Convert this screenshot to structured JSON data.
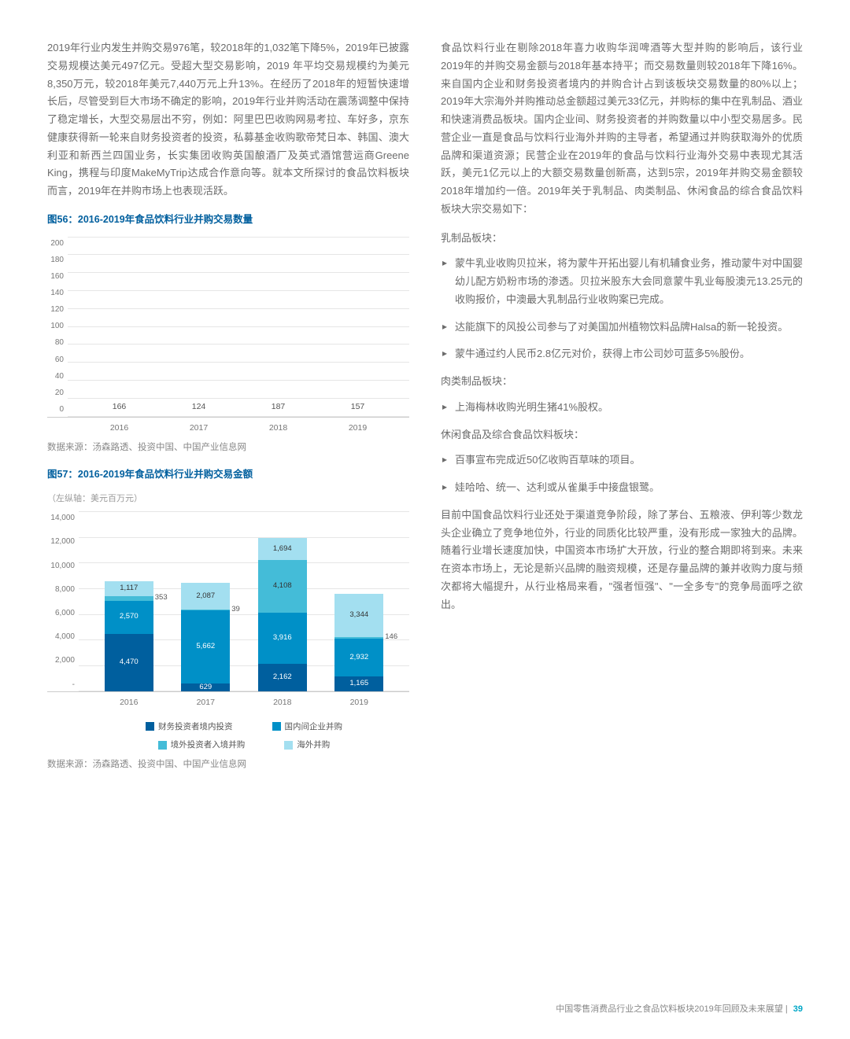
{
  "leftCol": {
    "para1": "2019年行业内发生并购交易976笔，较2018年的1,032笔下降5%，2019年已披露交易规模达美元497亿元。受超大型交易影响，2019 年平均交易规模约为美元8,350万元，较2018年美元7,440万元上升13%。在经历了2018年的短暂快速增长后，尽管受到巨大市场不确定的影响，2019年行业并购活动在震荡调整中保持了稳定增长，大型交易层出不穷，例如：阿里巴巴收购网易考拉、车好多，京东健康获得新一轮来自财务投资者的投资，私募基金收购歌帝梵日本、韩国、澳大利亚和新西兰四国业务，长实集团收购英国酿酒厂及英式酒馆营运商Greene King，携程与印度MakeMyTrip达成合作意向等。就本文所探讨的食品饮料板块而言，2019年在并购市场上也表现活跃。"
  },
  "chart56": {
    "title": "图56：2016-2019年食品饮料行业并购交易数量",
    "type": "bar",
    "categories": [
      "2016",
      "2017",
      "2018",
      "2019"
    ],
    "values": [
      166,
      124,
      187,
      157
    ],
    "ylim": [
      0,
      200
    ],
    "ytick_step": 20,
    "bar_color": "#7fcde3",
    "grid_color": "#e6e6e6",
    "source": "数据来源：汤森路透、投资中国、中国产业信息网"
  },
  "chart57": {
    "title": "图57：2016-2019年食品饮料行业并购交易金额",
    "axis_note": "（左纵轴：美元百万元）",
    "type": "stacked_bar",
    "categories": [
      "2016",
      "2017",
      "2018",
      "2019"
    ],
    "ylim": [
      0,
      14000
    ],
    "ytick_step": 2000,
    "yticks": [
      "-",
      "2,000",
      "4,000",
      "6,000",
      "8,000",
      "10,000",
      "12,000",
      "14,000"
    ],
    "series": [
      {
        "name": "财务投资者境内投资",
        "color": "#005f9e",
        "values": [
          4470,
          629,
          2162,
          1165
        ]
      },
      {
        "name": "国内间企业并购",
        "color": "#0090c7",
        "values": [
          2570,
          5662,
          3916,
          2932
        ]
      },
      {
        "name": "境外投资者入境并购",
        "color": "#44bcd8",
        "values": [
          353,
          39,
          4108,
          146
        ]
      },
      {
        "name": "海外并购",
        "color": "#a3dff0",
        "values": [
          1117,
          2087,
          1694,
          3344
        ]
      }
    ],
    "grid_color": "#e6e6e6",
    "source": "数据来源：汤森路透、投资中国、中国产业信息网"
  },
  "rightCol": {
    "para1": "食品饮料行业在剔除2018年喜力收购华润啤酒等大型并购的影响后，该行业2019年的并购交易金额与2018年基本持平；而交易数量则较2018年下降16%。来自国内企业和财务投资者境内的并购合计占到该板块交易数量的80%以上；2019年大宗海外并购推动总金额超过美元33亿元，并购标的集中在乳制品、酒业和快速消费品板块。国内企业间、财务投资者的并购数量以中小型交易居多。民营企业一直是食品与饮料行业海外并购的主导者，希望通过并购获取海外的优质品牌和渠道资源；民营企业在2019年的食品与饮料行业海外交易中表现尤其活跃，美元1亿元以上的大额交易数量创新高，达到5宗，2019年并购交易金额较2018年增加约一倍。2019年关于乳制品、肉类制品、休闲食品的综合食品饮料板块大宗交易如下：",
    "dairy_label": "乳制品板块：",
    "dairy": [
      "蒙牛乳业收购贝拉米，将为蒙牛开拓出婴儿有机辅食业务，推动蒙牛对中国婴幼儿配方奶粉市场的渗透。贝拉米股东大会同意蒙牛乳业每股澳元13.25元的收购报价，中澳最大乳制品行业收购案已完成。",
      "达能旗下的风投公司参与了对美国加州植物饮料品牌Halsa的新一轮投资。",
      "蒙牛通过约人民币2.8亿元对价，获得上市公司妙可蓝多5%股份。"
    ],
    "meat_label": "肉类制品板块：",
    "meat": [
      "上海梅林收购光明生猪41%股权。"
    ],
    "snack_label": "休闲食品及综合食品饮料板块：",
    "snack": [
      "百事宣布完成近50亿收购百草味的项目。",
      "娃哈哈、统一、达利或从雀巢手中接盘银鹭。"
    ],
    "para2": "目前中国食品饮料行业还处于渠道竞争阶段，除了茅台、五粮液、伊利等少数龙头企业确立了竞争地位外，行业的同质化比较严重，没有形成一家独大的品牌。随着行业增长速度加快，中国资本市场扩大开放，行业的整合期即将到来。未来在资本市场上，无论是新兴品牌的融资规模，还是存量品牌的兼并收购力度与频次都将大幅提升，从行业格局来看，\"强者恒强\"、\"一全多专\"的竞争局面呼之欲出。"
  },
  "footer": {
    "text": "中国零售消费品行业之食品饮料板块2019年回顾及未来展望",
    "sep": " | ",
    "page": "39"
  }
}
